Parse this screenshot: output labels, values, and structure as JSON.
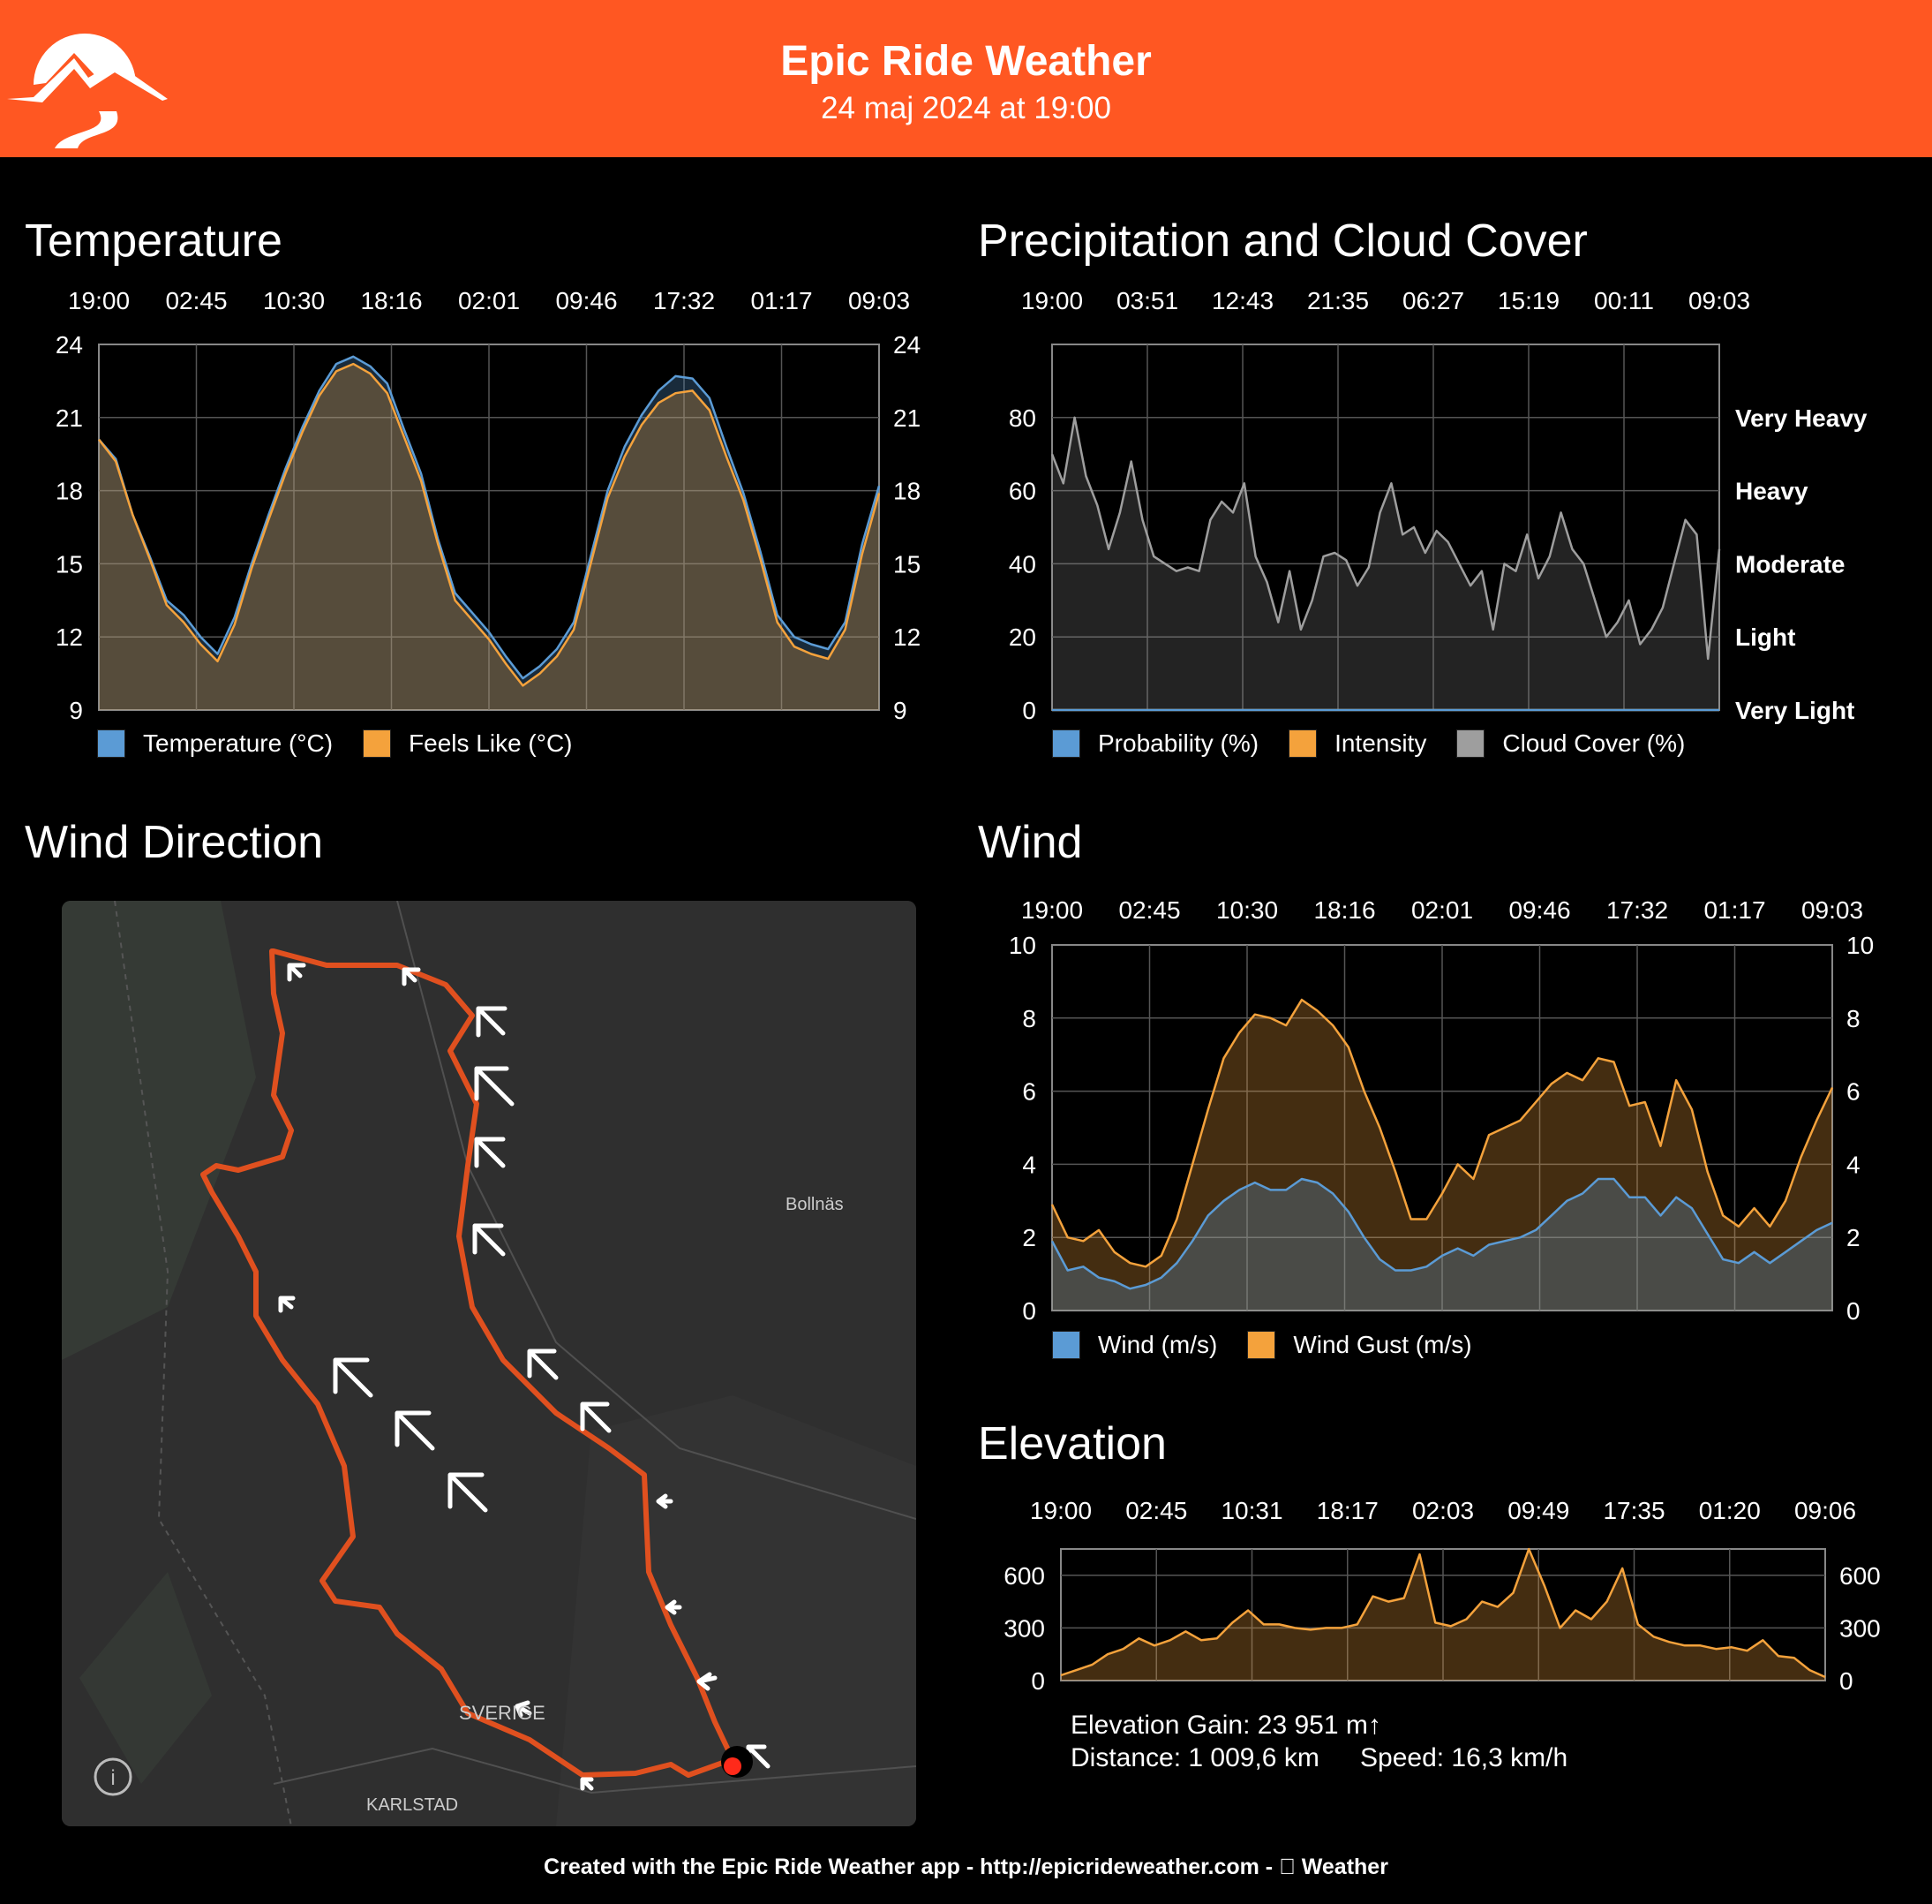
{
  "header": {
    "title": "Epic Ride Weather",
    "date": "24 maj 2024 at 19:00"
  },
  "colors": {
    "brand": "#ff5722",
    "temp": "#5b9bd5",
    "feels": "#f4a23c",
    "cloud": "#9e9e9e",
    "route": "#e0501f"
  },
  "sections": {
    "temperature": "Temperature",
    "precipitation": "Precipitation and Cloud Cover",
    "wind_direction": "Wind Direction",
    "wind": "Wind",
    "elevation": "Elevation"
  },
  "legends": {
    "temperature": [
      "Temperature (°C)",
      "Feels Like (°C)"
    ],
    "precipitation": [
      "Probability (%)",
      "Intensity",
      "Cloud Cover (%)"
    ],
    "wind": [
      "Wind (m/s)",
      "Wind Gust (m/s)"
    ]
  },
  "map": {
    "labels": [
      "Bollnäs",
      "SVERIGE",
      "KARLSTAD"
    ],
    "info_icon": "i"
  },
  "stats": {
    "gain": "Elevation Gain: 23 951 m↑",
    "distance": "Distance: 1 009,6 km",
    "speed": "Speed: 16,3 km/h"
  },
  "footer": "Created with the Epic Ride Weather app - http://epicrideweather.com -  Weather",
  "chart_data": [
    {
      "id": "temperature",
      "type": "area",
      "x_ticks": [
        "19:00",
        "02:45",
        "10:30",
        "18:16",
        "02:01",
        "09:46",
        "17:32",
        "01:17",
        "09:03"
      ],
      "ylim": [
        9,
        24
      ],
      "y_ticks": [
        9,
        12,
        15,
        18,
        21,
        24
      ],
      "series": [
        {
          "name": "Temperature (°C)",
          "color": "#5b9bd5",
          "values": [
            20.1,
            19.3,
            17.0,
            15.3,
            13.5,
            12.9,
            12.0,
            11.3,
            12.8,
            15.0,
            17.0,
            18.9,
            20.6,
            22.1,
            23.2,
            23.5,
            23.1,
            22.4,
            20.5,
            18.7,
            16.0,
            13.8,
            13.0,
            12.2,
            11.2,
            10.3,
            10.8,
            11.5,
            12.6,
            15.3,
            18.0,
            19.8,
            21.1,
            22.1,
            22.7,
            22.6,
            21.8,
            19.8,
            17.9,
            15.5,
            12.9,
            12.0,
            11.7,
            11.5,
            12.6,
            15.8,
            18.2
          ]
        },
        {
          "name": "Feels Like (°C)",
          "color": "#f4a23c",
          "values": [
            20.1,
            19.2,
            17.0,
            15.2,
            13.3,
            12.6,
            11.7,
            11.0,
            12.5,
            14.8,
            16.8,
            18.7,
            20.4,
            21.9,
            22.9,
            23.2,
            22.8,
            22.0,
            20.2,
            18.4,
            15.8,
            13.5,
            12.7,
            11.9,
            10.9,
            10.0,
            10.5,
            11.2,
            12.3,
            15.0,
            17.7,
            19.4,
            20.7,
            21.6,
            22.0,
            22.1,
            21.3,
            19.4,
            17.6,
            15.2,
            12.6,
            11.6,
            11.3,
            11.1,
            12.3,
            15.4,
            17.9
          ]
        }
      ]
    },
    {
      "id": "precipitation",
      "type": "area",
      "x_ticks": [
        "19:00",
        "03:51",
        "12:43",
        "21:35",
        "06:27",
        "15:19",
        "00:11",
        "09:03"
      ],
      "ylim": [
        0,
        100
      ],
      "y_ticks": [
        0,
        20,
        40,
        60,
        80
      ],
      "right_labels": [
        "Very Light",
        "Light",
        "Moderate",
        "Heavy",
        "Very Heavy"
      ],
      "series": [
        {
          "name": "Cloud Cover (%)",
          "color": "#9e9e9e",
          "values": [
            70,
            62,
            80,
            64,
            56,
            44,
            54,
            68,
            52,
            42,
            40,
            38,
            39,
            38,
            52,
            57,
            54,
            62,
            42,
            35,
            24,
            38,
            22,
            30,
            42,
            43,
            41,
            34,
            39,
            54,
            62,
            48,
            50,
            43,
            49,
            46,
            40,
            34,
            38,
            22,
            40,
            38,
            48,
            36,
            42,
            54,
            44,
            40,
            30,
            20,
            24,
            30,
            18,
            22,
            28,
            40,
            52,
            48,
            14,
            44
          ]
        },
        {
          "name": "Intensity",
          "color": "#f4a23c",
          "values": [
            0,
            0,
            0,
            0,
            0,
            0,
            0,
            0,
            0,
            0,
            0,
            0,
            0,
            0,
            0,
            0,
            0,
            0,
            0,
            0,
            0,
            0,
            0,
            0,
            0,
            0,
            0,
            0,
            0,
            0,
            0,
            0,
            0,
            0,
            0,
            0,
            0,
            0,
            0,
            0,
            0,
            0,
            0,
            0,
            0,
            0,
            0,
            0,
            0,
            0,
            0,
            0,
            0,
            0,
            0,
            0,
            0,
            0,
            0,
            0
          ]
        },
        {
          "name": "Probability (%)",
          "color": "#5b9bd5",
          "values": [
            0,
            0,
            0,
            0,
            0,
            0,
            0,
            0,
            0,
            0,
            0,
            0,
            0,
            0,
            0,
            0,
            0,
            0,
            0,
            0,
            0,
            0,
            0,
            0,
            0,
            0,
            0,
            0,
            0,
            0,
            0,
            0,
            0,
            0,
            0,
            0,
            0,
            0,
            0,
            0,
            0,
            0,
            0,
            0,
            0,
            0,
            0,
            0,
            0,
            0,
            0,
            0,
            0,
            0,
            0,
            0,
            0,
            0,
            0,
            0
          ]
        }
      ]
    },
    {
      "id": "wind",
      "type": "area",
      "x_ticks": [
        "19:00",
        "02:45",
        "10:30",
        "18:16",
        "02:01",
        "09:46",
        "17:32",
        "01:17",
        "09:03"
      ],
      "ylim": [
        0,
        10
      ],
      "y_ticks": [
        0,
        2,
        4,
        6,
        8,
        10
      ],
      "series": [
        {
          "name": "Wind Gust (m/s)",
          "color": "#f4a23c",
          "values": [
            2.9,
            2.0,
            1.9,
            2.2,
            1.6,
            1.3,
            1.2,
            1.5,
            2.5,
            4.0,
            5.5,
            6.9,
            7.6,
            8.1,
            8.0,
            7.8,
            8.5,
            8.2,
            7.8,
            7.2,
            6.0,
            5.0,
            3.8,
            2.5,
            2.5,
            3.2,
            4.0,
            3.6,
            4.8,
            5.0,
            5.2,
            5.7,
            6.2,
            6.5,
            6.3,
            6.9,
            6.8,
            5.6,
            5.7,
            4.5,
            6.3,
            5.5,
            3.8,
            2.6,
            2.3,
            2.8,
            2.3,
            3.0,
            4.2,
            5.2,
            6.1
          ]
        },
        {
          "name": "Wind (m/s)",
          "color": "#5b9bd5",
          "values": [
            1.9,
            1.1,
            1.2,
            0.9,
            0.8,
            0.6,
            0.7,
            0.9,
            1.3,
            1.9,
            2.6,
            3.0,
            3.3,
            3.5,
            3.3,
            3.3,
            3.6,
            3.5,
            3.2,
            2.7,
            2.0,
            1.4,
            1.1,
            1.1,
            1.2,
            1.5,
            1.7,
            1.5,
            1.8,
            1.9,
            2.0,
            2.2,
            2.6,
            3.0,
            3.2,
            3.6,
            3.6,
            3.1,
            3.1,
            2.6,
            3.1,
            2.8,
            2.1,
            1.4,
            1.3,
            1.6,
            1.3,
            1.6,
            1.9,
            2.2,
            2.4
          ]
        }
      ]
    },
    {
      "id": "elevation",
      "type": "area",
      "x_ticks": [
        "19:00",
        "02:45",
        "10:31",
        "18:17",
        "02:03",
        "09:49",
        "17:35",
        "01:20",
        "09:06"
      ],
      "ylim": [
        0,
        750
      ],
      "y_ticks": [
        0,
        300,
        600
      ],
      "series": [
        {
          "name": "Elevation",
          "color": "#f4a23c",
          "values": [
            30,
            60,
            90,
            150,
            180,
            240,
            200,
            230,
            280,
            230,
            240,
            330,
            400,
            320,
            320,
            300,
            290,
            300,
            300,
            320,
            480,
            450,
            470,
            720,
            330,
            310,
            350,
            450,
            420,
            500,
            780,
            540,
            300,
            400,
            350,
            450,
            640,
            320,
            250,
            220,
            200,
            200,
            180,
            190,
            170,
            230,
            140,
            130,
            60,
            20
          ]
        }
      ]
    }
  ]
}
